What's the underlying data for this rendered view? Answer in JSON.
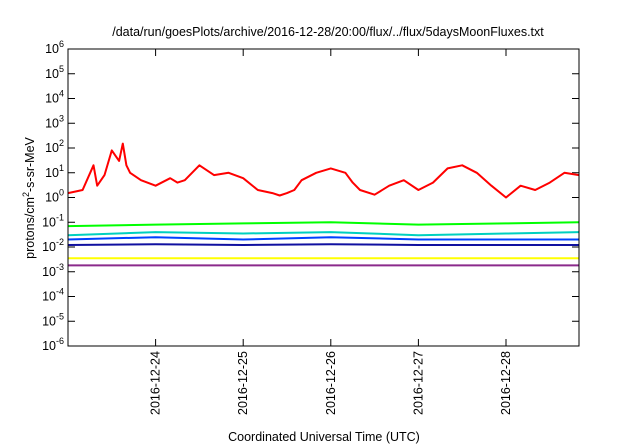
{
  "chart_data": {
    "type": "line",
    "title": "/data/run/goesPlots/archive/2016-12-28/20:00/flux/../flux/5daysMoonFluxes.txt",
    "xlabel": "Coordinated Universal Time (UTC)",
    "ylabel": {
      "base": "protons/cm",
      "sup": "2",
      "rest": "-s-sr-MeV"
    },
    "yscale": "log",
    "ylim_exponents": [
      -6,
      6
    ],
    "y_ticks": [
      {
        "base": "10",
        "exp": "-6"
      },
      {
        "base": "10",
        "exp": "-5"
      },
      {
        "base": "10",
        "exp": "-4"
      },
      {
        "base": "10",
        "exp": "-3"
      },
      {
        "base": "10",
        "exp": "-2"
      },
      {
        "base": "10",
        "exp": "-1"
      },
      {
        "base": "10",
        "exp": "0"
      },
      {
        "base": "10",
        "exp": "1"
      },
      {
        "base": "10",
        "exp": "2"
      },
      {
        "base": "10",
        "exp": "3"
      },
      {
        "base": "10",
        "exp": "4"
      },
      {
        "base": "10",
        "exp": "5"
      },
      {
        "base": "10",
        "exp": "6"
      }
    ],
    "xlim": [
      "2016-12-23T00:00",
      "2016-12-28T20:00"
    ],
    "x_ticks": [
      {
        "label": "2016-12-24",
        "value": "2016-12-24T00:00"
      },
      {
        "label": "2016-12-25",
        "value": "2016-12-25T00:00"
      },
      {
        "label": "2016-12-26",
        "value": "2016-12-26T00:00"
      },
      {
        "label": "2016-12-27",
        "value": "2016-12-27T00:00"
      },
      {
        "label": "2016-12-28",
        "value": "2016-12-28T00:00"
      }
    ],
    "grid": false,
    "series": [
      {
        "color": "#ff0000",
        "x": [
          "2016-12-23T00:00",
          "2016-12-23T04:00",
          "2016-12-23T07:00",
          "2016-12-23T08:00",
          "2016-12-23T10:00",
          "2016-12-23T12:00",
          "2016-12-23T14:00",
          "2016-12-23T15:00",
          "2016-12-23T16:00",
          "2016-12-23T17:00",
          "2016-12-23T20:00",
          "2016-12-24T00:00",
          "2016-12-24T04:00",
          "2016-12-24T06:00",
          "2016-12-24T08:00",
          "2016-12-24T12:00",
          "2016-12-24T16:00",
          "2016-12-24T20:00",
          "2016-12-25T00:00",
          "2016-12-25T04:00",
          "2016-12-25T08:00",
          "2016-12-25T10:00",
          "2016-12-25T12:00",
          "2016-12-25T14:00",
          "2016-12-25T16:00",
          "2016-12-25T20:00",
          "2016-12-26T00:00",
          "2016-12-26T04:00",
          "2016-12-26T06:00",
          "2016-12-26T08:00",
          "2016-12-26T12:00",
          "2016-12-26T16:00",
          "2016-12-26T20:00",
          "2016-12-27T00:00",
          "2016-12-27T04:00",
          "2016-12-27T08:00",
          "2016-12-27T12:00",
          "2016-12-27T16:00",
          "2016-12-27T20:00",
          "2016-12-28T00:00",
          "2016-12-28T04:00",
          "2016-12-28T08:00",
          "2016-12-28T12:00",
          "2016-12-28T16:00",
          "2016-12-28T20:00"
        ],
        "y": [
          1.5,
          2,
          20,
          3,
          8,
          80,
          30,
          150,
          20,
          10,
          5,
          3,
          6,
          4,
          5,
          20,
          8,
          10,
          6,
          2,
          1.5,
          1.2,
          1.5,
          2,
          5,
          10,
          15,
          10,
          4,
          2,
          1.3,
          3,
          5,
          2,
          4,
          15,
          20,
          10,
          3,
          1,
          3,
          2,
          4,
          10,
          8
        ]
      },
      {
        "color": "#00ff00",
        "x": [
          "2016-12-23T00:00",
          "2016-12-24T00:00",
          "2016-12-25T00:00",
          "2016-12-26T00:00",
          "2016-12-27T00:00",
          "2016-12-28T00:00",
          "2016-12-28T20:00"
        ],
        "y": [
          0.07,
          0.08,
          0.09,
          0.1,
          0.08,
          0.09,
          0.1
        ]
      },
      {
        "color": "#00d0c0",
        "x": [
          "2016-12-23T00:00",
          "2016-12-24T00:00",
          "2016-12-25T00:00",
          "2016-12-26T00:00",
          "2016-12-27T00:00",
          "2016-12-28T00:00",
          "2016-12-28T20:00"
        ],
        "y": [
          0.03,
          0.04,
          0.035,
          0.04,
          0.03,
          0.035,
          0.04
        ]
      },
      {
        "color": "#0040ff",
        "x": [
          "2016-12-23T00:00",
          "2016-12-24T00:00",
          "2016-12-25T00:00",
          "2016-12-26T00:00",
          "2016-12-27T00:00",
          "2016-12-28T00:00",
          "2016-12-28T20:00"
        ],
        "y": [
          0.02,
          0.025,
          0.02,
          0.025,
          0.02,
          0.02,
          0.02
        ]
      },
      {
        "color": "#1010a0",
        "x": [
          "2016-12-23T00:00",
          "2016-12-24T00:00",
          "2016-12-25T00:00",
          "2016-12-26T00:00",
          "2016-12-27T00:00",
          "2016-12-28T00:00",
          "2016-12-28T20:00"
        ],
        "y": [
          0.012,
          0.013,
          0.012,
          0.013,
          0.012,
          0.012,
          0.012
        ]
      },
      {
        "color": "#ffff00",
        "x": [
          "2016-12-23T00:00",
          "2016-12-24T00:00",
          "2016-12-25T00:00",
          "2016-12-26T00:00",
          "2016-12-27T00:00",
          "2016-12-28T00:00",
          "2016-12-28T20:00"
        ],
        "y": [
          0.0035,
          0.0035,
          0.0035,
          0.0035,
          0.0035,
          0.0035,
          0.0035
        ]
      },
      {
        "color": "#8b2a8b",
        "x": [
          "2016-12-23T00:00",
          "2016-12-24T00:00",
          "2016-12-25T00:00",
          "2016-12-26T00:00",
          "2016-12-27T00:00",
          "2016-12-28T00:00",
          "2016-12-28T20:00"
        ],
        "y": [
          0.0018,
          0.0018,
          0.0018,
          0.0018,
          0.0018,
          0.0018,
          0.0018
        ]
      }
    ]
  }
}
